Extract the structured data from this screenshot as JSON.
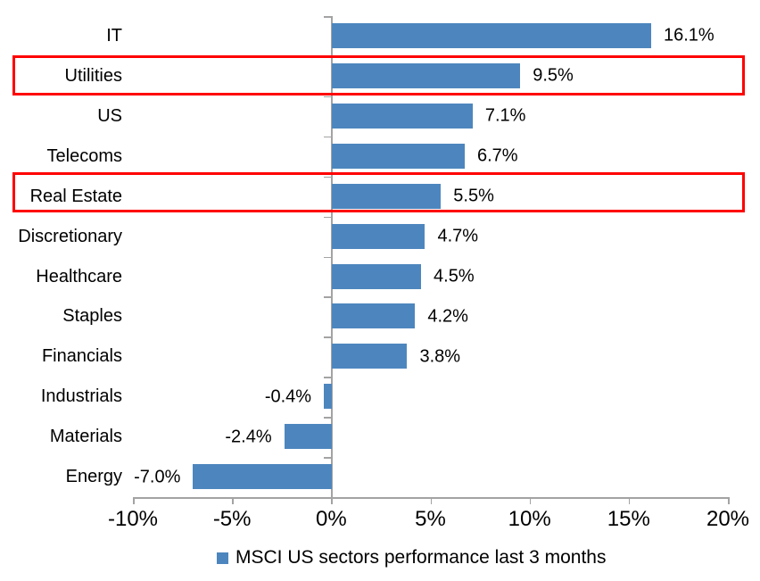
{
  "chart_data": {
    "type": "bar",
    "orientation": "horizontal",
    "title": "",
    "categories": [
      "IT",
      "Utilities",
      "US",
      "Telecoms",
      "Real Estate",
      "Discretionary",
      "Healthcare",
      "Staples",
      "Financials",
      "Industrials",
      "Materials",
      "Energy"
    ],
    "values": [
      16.1,
      9.5,
      7.1,
      6.7,
      5.5,
      4.7,
      4.5,
      4.2,
      3.8,
      -0.4,
      -2.4,
      -7.0
    ],
    "value_labels": [
      "16.1%",
      "9.5%",
      "7.1%",
      "6.7%",
      "5.5%",
      "4.7%",
      "4.5%",
      "4.2%",
      "3.8%",
      "-0.4%",
      "-2.4%",
      "-7.0%"
    ],
    "highlighted_categories": [
      "Utilities",
      "Real Estate"
    ],
    "x_axis": {
      "min": -10,
      "max": 20,
      "step": 5,
      "tick_labels": [
        "-10%",
        "-5%",
        "0%",
        "5%",
        "10%",
        "15%",
        "20%"
      ]
    },
    "legend": {
      "label": "MSCI US sectors performance last 3 months"
    },
    "grid": false,
    "legend_position": "bottom",
    "colors": {
      "bar": "#4D86BE",
      "highlight_box": "#FF0000",
      "axis": "#A3A3A3",
      "text": "#000000",
      "background": "#FFFFFF"
    }
  }
}
